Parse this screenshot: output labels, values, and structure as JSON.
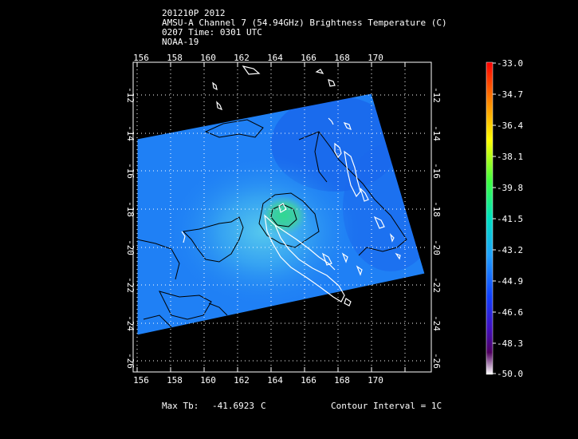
{
  "header": {
    "line1": "201210P 2012",
    "line2": "AMSU-A Channel 7 (54.94GHz) Brightness Temperature (C)",
    "line3": "0207 Time: 0301 UTC",
    "line4": "NOAA-19"
  },
  "map": {
    "lon_ticks": [
      "156",
      "158",
      "160",
      "162",
      "164",
      "166",
      "168",
      "170"
    ],
    "lat_ticks": [
      "-12",
      "-14",
      "-16",
      "-18",
      "-20",
      "-22",
      "-24",
      "-26"
    ]
  },
  "colorbar": {
    "labels": [
      "-33.0",
      "-34.7",
      "-36.4",
      "-38.1",
      "-39.8",
      "-41.5",
      "-43.2",
      "-44.9",
      "-46.6",
      "-48.3",
      "-50.0"
    ]
  },
  "footer": {
    "max_label": "Max Tb:",
    "max_value": "-41.6923",
    "max_unit": "C",
    "contour": "Contour Interval = 1C"
  },
  "colors": {
    "swath_base": "#1f80f5",
    "swath_dark": "#1860e8",
    "warm_center": "#3aa0f0",
    "core": "#20e090",
    "contour": "#000000",
    "coastline": "#ffffff"
  }
}
